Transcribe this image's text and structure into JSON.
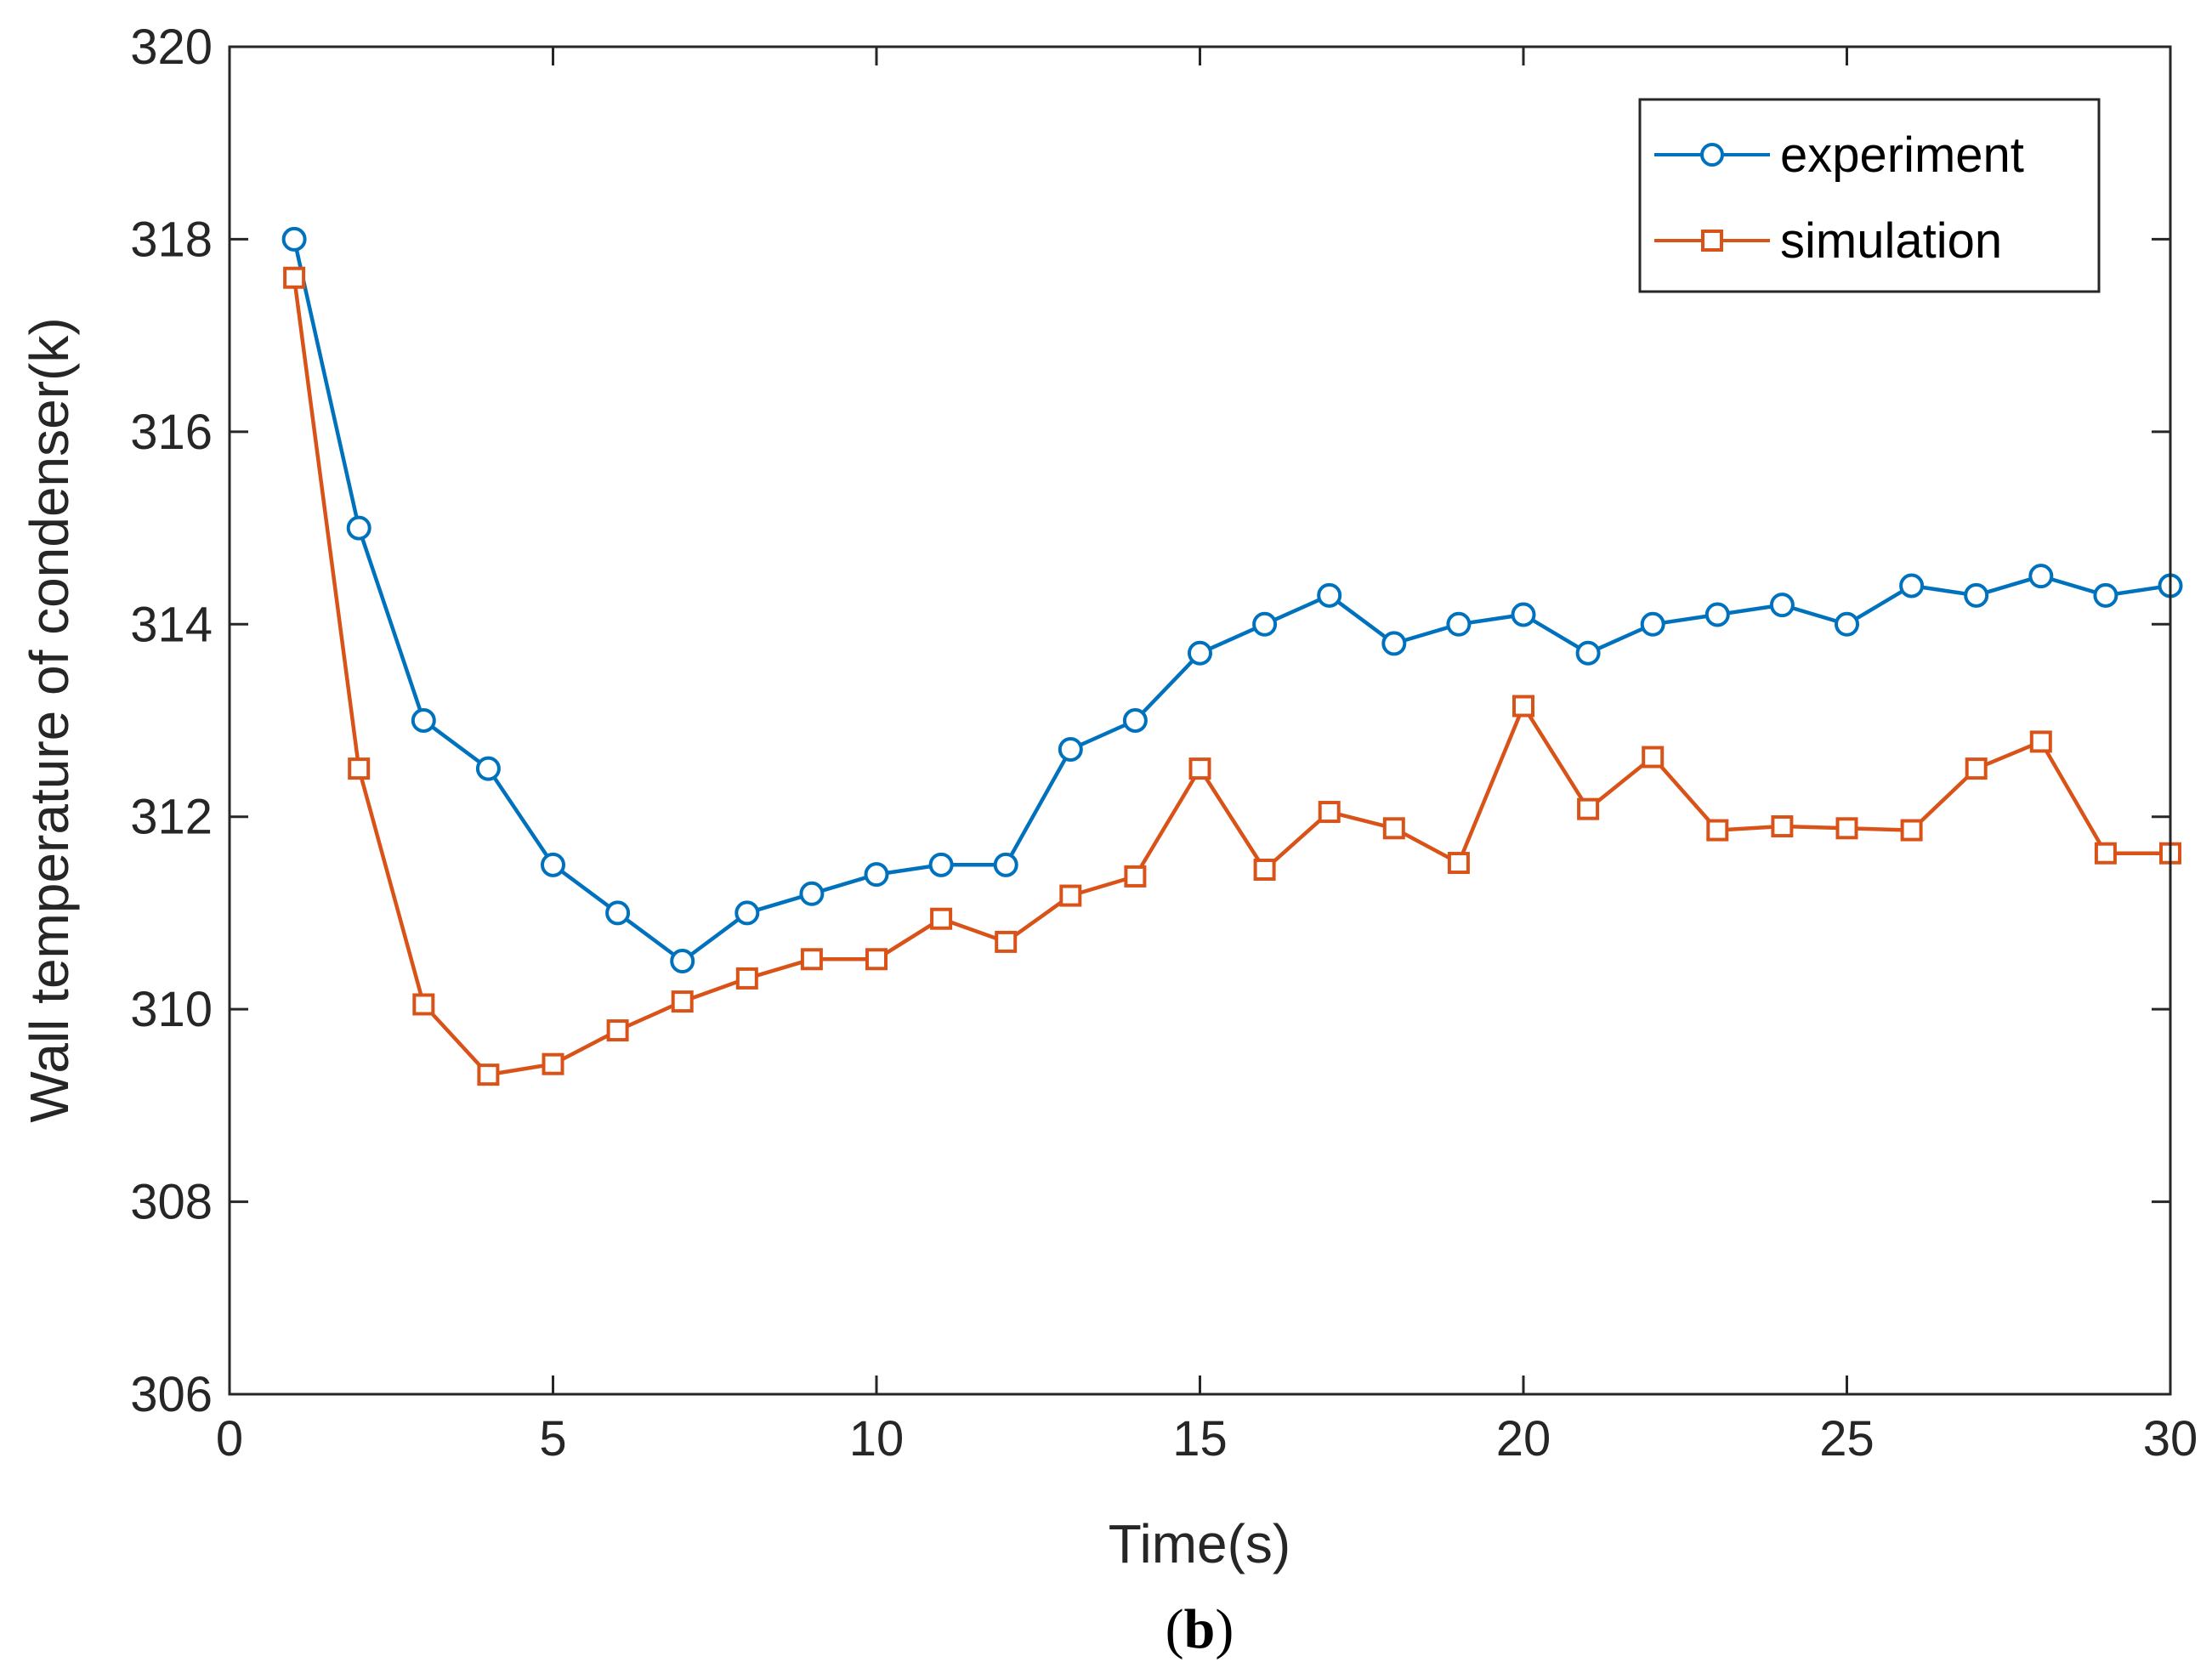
{
  "chart_data": {
    "type": "line",
    "title": "",
    "xlabel": "Time(s)",
    "ylabel": "Wall temperature of condenser(k)",
    "xlim": [
      0,
      30
    ],
    "ylim": [
      306,
      320
    ],
    "xticks": [
      0,
      5,
      10,
      15,
      20,
      25,
      30
    ],
    "yticks": [
      306,
      308,
      310,
      312,
      314,
      316,
      318,
      320
    ],
    "grid": false,
    "legend_position": "top-right",
    "x": [
      1,
      2,
      3,
      4,
      5,
      6,
      7,
      8,
      9,
      10,
      11,
      12,
      13,
      14,
      15,
      16,
      17,
      18,
      19,
      20,
      21,
      22,
      23,
      24,
      25,
      26,
      27,
      28,
      29,
      30
    ],
    "series": [
      {
        "name": "experiment",
        "color": "#0072BD",
        "marker": "circle",
        "values": [
          318.0,
          315.0,
          313.0,
          312.5,
          311.5,
          311.0,
          310.5,
          311.0,
          311.2,
          311.4,
          311.5,
          311.5,
          312.7,
          313.0,
          313.7,
          314.0,
          314.3,
          313.8,
          314.0,
          314.1,
          313.7,
          314.0,
          314.1,
          314.2,
          314.0,
          314.4,
          314.3,
          314.5,
          314.3,
          314.4
        ]
      },
      {
        "name": "simulation",
        "color": "#D95319",
        "marker": "square",
        "values": [
          317.6,
          312.5,
          310.05,
          309.32,
          309.43,
          309.78,
          310.08,
          310.32,
          310.52,
          310.52,
          310.94,
          310.7,
          311.18,
          311.38,
          312.5,
          311.45,
          312.05,
          311.88,
          311.52,
          313.15,
          312.08,
          312.62,
          311.86,
          311.9,
          311.88,
          311.86,
          312.5,
          312.78,
          311.62,
          311.62
        ]
      }
    ]
  },
  "caption": {
    "open": "(",
    "letter": "b",
    "close": ")"
  }
}
